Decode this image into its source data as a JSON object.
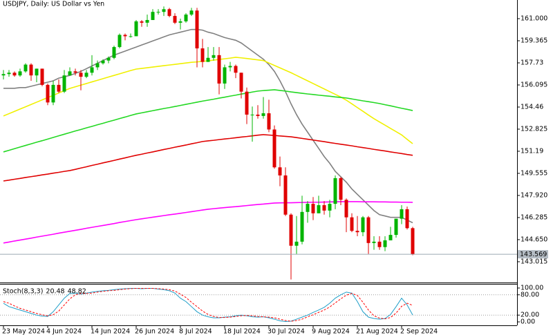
{
  "chart_data": [
    {
      "type": "candlestick",
      "title": "USDJPY, Daily:  US Dollar vs Yen",
      "categories": [
        "23 May 2024",
        null,
        null,
        null,
        null,
        null,
        null,
        null,
        "4 Jun 2024",
        null,
        null,
        null,
        null,
        null,
        null,
        null,
        "14 Jun 2024",
        null,
        null,
        null,
        null,
        null,
        null,
        null,
        "26 Jun 2024",
        null,
        null,
        null,
        null,
        null,
        null,
        null,
        "8 Jul 2024",
        null,
        null,
        null,
        null,
        null,
        null,
        null,
        "18 Jul 2024",
        null,
        null,
        null,
        null,
        null,
        null,
        null,
        "30 Jul 2024",
        null,
        null,
        null,
        null,
        null,
        null,
        null,
        "9 Aug 2024",
        null,
        null,
        null,
        null,
        null,
        null,
        null,
        "21 Aug 2024",
        null,
        null,
        null,
        null,
        null,
        null,
        null,
        "2 Sep 2024",
        null,
        null
      ],
      "open": [
        156.8,
        156.9,
        157.0,
        156.8,
        157.1,
        157.6,
        156.8,
        157.3,
        156.1,
        154.8,
        156.1,
        155.6,
        156.8,
        157.1,
        157.0,
        156.7,
        157.0,
        157.4,
        157.7,
        157.9,
        158.1,
        158.9,
        159.8,
        159.7,
        159.7,
        160.8,
        160.7,
        160.9,
        161.5,
        161.5,
        161.7,
        161.2,
        160.7,
        160.8,
        161.3,
        161.6,
        158.8,
        157.8,
        158.1,
        158.3,
        156.2,
        157.4,
        157.5,
        157.0,
        155.6,
        153.9,
        153.9,
        153.8,
        154.0,
        152.8,
        150.0,
        149.4,
        146.5,
        144.2,
        144.5,
        146.7,
        147.3,
        146.6,
        147.2,
        146.8,
        147.3,
        149.2,
        147.6,
        146.3,
        145.3,
        145.2,
        146.3,
        144.4,
        144.5,
        144.1,
        144.6,
        145.0,
        146.2,
        146.9,
        145.5
      ],
      "high": [
        157.2,
        157.2,
        157.1,
        157.3,
        157.7,
        157.7,
        157.3,
        157.3,
        156.2,
        156.4,
        156.5,
        157.2,
        157.4,
        157.3,
        157.2,
        157.2,
        158.3,
        157.9,
        158.0,
        158.2,
        159.0,
        159.9,
        159.9,
        159.9,
        160.9,
        160.9,
        161.3,
        161.7,
        161.7,
        161.9,
        161.8,
        161.4,
        161.0,
        161.4,
        161.8,
        161.8,
        159.5,
        158.9,
        158.9,
        158.9,
        157.6,
        157.8,
        157.6,
        157.0,
        155.9,
        154.5,
        154.6,
        155.2,
        155.0,
        153.1,
        150.8,
        150.0,
        146.6,
        146.4,
        147.9,
        147.5,
        147.8,
        147.9,
        147.5,
        147.6,
        149.4,
        149.3,
        147.7,
        146.6,
        146.4,
        146.4,
        146.4,
        144.9,
        144.9,
        144.9,
        145.6,
        146.2,
        147.2,
        147.1,
        145.6
      ],
      "low": [
        156.5,
        156.7,
        156.7,
        156.7,
        157.0,
        156.4,
        156.3,
        156.0,
        154.6,
        154.6,
        155.5,
        155.5,
        156.8,
        156.8,
        155.7,
        156.6,
        156.8,
        157.2,
        157.6,
        157.7,
        158.0,
        158.8,
        159.4,
        159.6,
        159.7,
        160.4,
        160.4,
        160.9,
        161.3,
        161.2,
        161.1,
        160.6,
        160.2,
        160.7,
        161.2,
        157.4,
        157.4,
        157.8,
        157.9,
        155.4,
        155.8,
        157.1,
        156.6,
        155.1,
        153.2,
        151.9,
        153.6,
        153.6,
        152.6,
        149.9,
        148.6,
        146.4,
        141.7,
        143.6,
        144.3,
        145.9,
        146.1,
        146.6,
        146.5,
        146.3,
        146.9,
        147.2,
        145.2,
        145.2,
        144.9,
        144.9,
        143.6,
        143.9,
        143.9,
        143.8,
        144.6,
        144.8,
        145.8,
        145.4,
        143.5
      ],
      "close": [
        156.9,
        157.0,
        156.8,
        157.1,
        157.6,
        156.8,
        157.3,
        156.1,
        154.8,
        156.1,
        155.6,
        156.8,
        157.1,
        157.0,
        156.7,
        157.0,
        157.4,
        157.7,
        157.9,
        158.1,
        158.9,
        159.8,
        159.7,
        159.7,
        160.8,
        160.7,
        160.9,
        161.5,
        161.5,
        161.7,
        161.2,
        160.7,
        160.8,
        161.3,
        161.6,
        158.8,
        157.8,
        158.1,
        158.3,
        156.2,
        157.4,
        157.5,
        157.0,
        155.6,
        153.9,
        153.9,
        153.8,
        154.0,
        152.8,
        150.0,
        149.4,
        146.5,
        144.2,
        144.5,
        146.7,
        147.3,
        146.6,
        147.2,
        146.8,
        147.3,
        149.2,
        147.6,
        146.3,
        145.3,
        145.2,
        146.3,
        144.4,
        144.5,
        144.1,
        144.6,
        145.0,
        146.2,
        146.9,
        145.5,
        143.569
      ],
      "up_color": "#00b400",
      "down_color": "#e00000",
      "series": [
        {
          "color": "#808080",
          "values": [
            155.85,
            155.85,
            155.85,
            155.9,
            155.9,
            156.0,
            156.1,
            156.2,
            156.3,
            156.4,
            156.6,
            156.7,
            156.8,
            156.95,
            157.1,
            157.3,
            157.5,
            157.7,
            157.9,
            158.1,
            158.3,
            158.45,
            158.6,
            158.75,
            158.9,
            159.05,
            159.2,
            159.35,
            159.5,
            159.65,
            159.8,
            159.9,
            160.0,
            160.1,
            160.2,
            160.2,
            160.15,
            160.0,
            159.9,
            159.75,
            159.6,
            159.5,
            159.4,
            159.2,
            158.9,
            158.6,
            158.3,
            158.0,
            157.6,
            157.1,
            156.4,
            155.6,
            154.7,
            153.9,
            153.2,
            152.6,
            152.0,
            151.4,
            150.8,
            150.3,
            149.7,
            149.3,
            148.9,
            148.4,
            148.0,
            147.6,
            147.2,
            146.8,
            146.5,
            146.4,
            146.3,
            146.3,
            146.3,
            146.1,
            145.9
          ]
        },
        {
          "color": "#f0f000",
          "values": [
            153.8,
            153.97,
            154.14,
            154.31,
            154.48,
            154.65,
            154.82,
            154.99,
            155.16,
            155.33,
            155.5,
            155.67,
            155.84,
            155.96,
            156.08,
            156.2,
            156.32,
            156.44,
            156.56,
            156.68,
            156.8,
            156.92,
            157.04,
            157.16,
            157.27,
            157.32,
            157.37,
            157.42,
            157.47,
            157.52,
            157.57,
            157.62,
            157.67,
            157.72,
            157.77,
            157.8,
            157.84,
            157.88,
            157.93,
            157.98,
            158.03,
            158.08,
            158.14,
            158.1,
            158.05,
            158.0,
            157.95,
            157.9,
            157.72,
            157.54,
            157.36,
            157.18,
            157.0,
            156.8,
            156.6,
            156.4,
            156.2,
            156.0,
            155.8,
            155.6,
            155.4,
            155.2,
            154.97,
            154.7,
            154.42,
            154.15,
            153.87,
            153.6,
            153.36,
            153.12,
            152.88,
            152.64,
            152.4,
            152.07,
            151.75
          ]
        },
        {
          "color": "#22d822",
          "values": [
            151.14,
            151.26,
            151.38,
            151.5,
            151.62,
            151.74,
            151.86,
            151.97,
            152.09,
            152.21,
            152.33,
            152.45,
            152.57,
            152.69,
            152.8,
            152.92,
            153.03,
            153.15,
            153.26,
            153.38,
            153.49,
            153.61,
            153.72,
            153.84,
            153.95,
            154.03,
            154.11,
            154.19,
            154.27,
            154.35,
            154.42,
            154.5,
            154.58,
            154.66,
            154.74,
            154.82,
            154.9,
            154.97,
            155.04,
            155.12,
            155.19,
            155.27,
            155.34,
            155.42,
            155.49,
            155.57,
            155.64,
            155.68,
            155.71,
            155.74,
            155.69,
            155.64,
            155.58,
            155.53,
            155.48,
            155.43,
            155.39,
            155.34,
            155.3,
            155.26,
            155.21,
            155.17,
            155.13,
            155.06,
            154.99,
            154.92,
            154.86,
            154.79,
            154.72,
            154.63,
            154.55,
            154.46,
            154.37,
            154.29,
            154.2
          ]
        },
        {
          "color": "#e00000",
          "values": [
            148.99,
            149.05,
            149.12,
            149.18,
            149.25,
            149.31,
            149.37,
            149.44,
            149.5,
            149.57,
            149.63,
            149.7,
            149.76,
            149.85,
            149.95,
            150.04,
            150.14,
            150.23,
            150.33,
            150.42,
            150.51,
            150.61,
            150.7,
            150.8,
            150.89,
            150.97,
            151.06,
            151.14,
            151.23,
            151.32,
            151.4,
            151.49,
            151.57,
            151.65,
            151.74,
            151.82,
            151.91,
            151.96,
            152.0,
            152.05,
            152.1,
            152.14,
            152.19,
            152.24,
            152.28,
            152.33,
            152.38,
            152.42,
            152.39,
            152.36,
            152.32,
            152.29,
            152.26,
            152.2,
            152.14,
            152.08,
            152.02,
            151.96,
            151.9,
            151.83,
            151.77,
            151.71,
            151.65,
            151.59,
            151.52,
            151.46,
            151.4,
            151.33,
            151.27,
            151.21,
            151.14,
            151.08,
            151.02,
            150.95,
            150.89
          ]
        },
        {
          "color": "#ff00ff",
          "values": [
            144.4,
            144.47,
            144.55,
            144.62,
            144.69,
            144.76,
            144.84,
            144.91,
            144.98,
            145.05,
            145.13,
            145.2,
            145.27,
            145.34,
            145.41,
            145.49,
            145.56,
            145.63,
            145.7,
            145.77,
            145.84,
            145.92,
            145.99,
            146.06,
            146.13,
            146.19,
            146.25,
            146.31,
            146.37,
            146.43,
            146.49,
            146.54,
            146.6,
            146.66,
            146.72,
            146.78,
            146.84,
            146.9,
            146.94,
            146.98,
            147.02,
            147.06,
            147.09,
            147.13,
            147.17,
            147.21,
            147.25,
            147.28,
            147.32,
            147.36,
            147.37,
            147.38,
            147.38,
            147.39,
            147.4,
            147.41,
            147.42,
            147.42,
            147.43,
            147.44,
            147.45,
            147.46,
            147.46,
            147.46,
            147.46,
            147.45,
            147.45,
            147.45,
            147.44,
            147.44,
            147.43,
            147.43,
            147.42,
            147.42,
            147.41
          ]
        }
      ],
      "ylim": [
        141.53,
        162.38
      ],
      "yticks": [
        {
          "value": 161,
          "label": "161.000"
        },
        159.365,
        157.73,
        156.095,
        154.46,
        152.825,
        151.19,
        149.555,
        {
          "value": 147.92,
          "label": "147.920"
        },
        146.285,
        {
          "value": 144.65,
          "label": "144.650"
        },
        143.015
      ]
    },
    {
      "type": "line",
      "title": "Stoch(8,3,3)",
      "series": [
        {
          "color": "#1e9ec8",
          "values": [
            55,
            45,
            40,
            35,
            30,
            25,
            20,
            17,
            16,
            30,
            50,
            70,
            84,
            85,
            82,
            85,
            88,
            90,
            92,
            93,
            95,
            97,
            98,
            99,
            99,
            98,
            99,
            99,
            97,
            95,
            92,
            85,
            70,
            60,
            45,
            30,
            20,
            15,
            12,
            12,
            14,
            15,
            18,
            20,
            18,
            15,
            14,
            15,
            12,
            8,
            3,
            1,
            2,
            8,
            14,
            20,
            28,
            35,
            43,
            55,
            70,
            80,
            88,
            85,
            60,
            30,
            14,
            10,
            8,
            10,
            22,
            45,
            70,
            50,
            20.48
          ]
        },
        {
          "color": "#ff0000",
          "dashed": true,
          "values": [
            60,
            55,
            47,
            40,
            35,
            30,
            25,
            21,
            18,
            21,
            32,
            50,
            68,
            80,
            84,
            84,
            85,
            88,
            90,
            92,
            93,
            95,
            97,
            98,
            99,
            99,
            99,
            99,
            98,
            97,
            95,
            91,
            82,
            72,
            58,
            45,
            32,
            22,
            16,
            13,
            13,
            14,
            16,
            18,
            19,
            18,
            16,
            15,
            14,
            12,
            8,
            4,
            2,
            4,
            8,
            15,
            21,
            28,
            35,
            44,
            56,
            68,
            79,
            84,
            78,
            58,
            35,
            18,
            11,
            9,
            13,
            26,
            46,
            55,
            48.82
          ]
        }
      ],
      "ylim": [
        -10.2,
        112.2
      ],
      "yticks": [
        {
          "value": 100,
          "label": "100.00"
        },
        {
          "value": 80,
          "label": "80.00"
        },
        {
          "value": 20,
          "label": "20.00"
        },
        {
          "value": 0,
          "label": "0.00"
        }
      ]
    }
  ]
}
